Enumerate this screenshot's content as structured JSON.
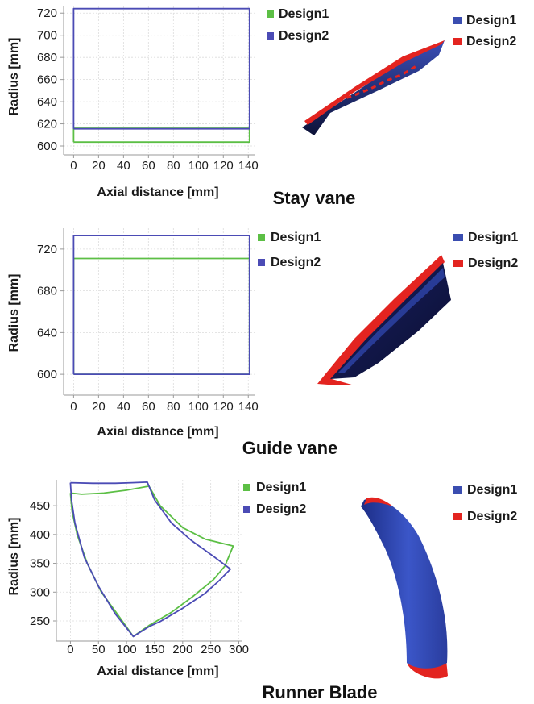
{
  "colors": {
    "design1": "#5cbf45",
    "design2": "#4b4bb5",
    "render_blue": "#2a3f9e",
    "render_navy": "#0f1440",
    "render_red": "#e32420",
    "legend_blue": "#3a4db0",
    "legend_red": "#e32420"
  },
  "chart_data": [
    {
      "id": "stay-vane",
      "type": "line",
      "title": "Stay vane",
      "xlabel": "Axial distance [mm]",
      "ylabel": "Radius [mm]",
      "xlim": [
        -8,
        145
      ],
      "ylim": [
        592,
        726
      ],
      "xticks": [
        0,
        20,
        40,
        60,
        80,
        100,
        120,
        140
      ],
      "yticks": [
        600,
        620,
        640,
        660,
        680,
        700,
        720
      ],
      "grid": true,
      "legend": [
        "Design1",
        "Design2"
      ],
      "render_legend": [
        "Design1",
        "Design2"
      ],
      "series": [
        {
          "name": "Design1",
          "points": [
            [
              0,
              603.5
            ],
            [
              141,
              603.5
            ],
            [
              141,
              616
            ],
            [
              0,
              616
            ],
            [
              0,
              603.5
            ]
          ]
        },
        {
          "name": "Design2",
          "points": [
            [
              0,
              615.5
            ],
            [
              141,
              615.5
            ],
            [
              141,
              724
            ],
            [
              0,
              724
            ],
            [
              0,
              615.5
            ]
          ]
        }
      ]
    },
    {
      "id": "guide-vane",
      "type": "line",
      "title": "Guide vane",
      "xlabel": "Axial distance [mm]",
      "ylabel": "Radius [mm]",
      "xlim": [
        -8,
        145
      ],
      "ylim": [
        580,
        740
      ],
      "xticks": [
        0,
        20,
        40,
        60,
        80,
        100,
        120,
        140
      ],
      "yticks": [
        600,
        640,
        680,
        720
      ],
      "grid": true,
      "legend": [
        "Design1",
        "Design2"
      ],
      "render_legend": [
        "Design1",
        "Design2"
      ],
      "series": [
        {
          "name": "Design1",
          "points": [
            [
              0,
              600
            ],
            [
              141,
              600
            ],
            [
              141,
              711
            ],
            [
              0,
              711
            ],
            [
              0,
              600
            ]
          ]
        },
        {
          "name": "Design2",
          "points": [
            [
              0,
              600
            ],
            [
              141,
              600
            ],
            [
              141,
              733
            ],
            [
              0,
              733
            ],
            [
              0,
              600
            ]
          ]
        }
      ]
    },
    {
      "id": "runner-blade",
      "type": "line",
      "title": "Runner Blade",
      "xlabel": "Axial distance [mm]",
      "ylabel": "Radius [mm]",
      "xlim": [
        -25,
        305
      ],
      "ylim": [
        215,
        495
      ],
      "xticks": [
        0,
        50,
        100,
        150,
        200,
        250,
        300
      ],
      "yticks": [
        250,
        300,
        350,
        400,
        450
      ],
      "grid": true,
      "legend": [
        "Design1",
        "Design2"
      ],
      "render_legend": [
        "Design1",
        "Design2"
      ],
      "series": [
        {
          "name": "Design1",
          "points": [
            [
              0,
              472
            ],
            [
              20,
              470
            ],
            [
              60,
              472
            ],
            [
              100,
              477
            ],
            [
              140,
              484
            ],
            [
              160,
              450
            ],
            [
              200,
              412
            ],
            [
              240,
              392
            ],
            [
              290,
              380
            ],
            [
              275,
              345
            ],
            [
              255,
              322
            ],
            [
              220,
              294
            ],
            [
              180,
              265
            ],
            [
              140,
              242
            ],
            [
              112,
              223
            ],
            [
              85,
              260
            ],
            [
              55,
              300
            ],
            [
              30,
              350
            ],
            [
              12,
              400
            ],
            [
              3,
              440
            ],
            [
              0,
              472
            ]
          ]
        },
        {
          "name": "Design2",
          "points": [
            [
              0,
              490
            ],
            [
              40,
              489
            ],
            [
              80,
              489
            ],
            [
              110,
              490
            ],
            [
              137,
              491
            ],
            [
              150,
              460
            ],
            [
              180,
              420
            ],
            [
              215,
              390
            ],
            [
              255,
              362
            ],
            [
              285,
              340
            ],
            [
              265,
              320
            ],
            [
              240,
              298
            ],
            [
              200,
              272
            ],
            [
              160,
              249
            ],
            [
              140,
              240
            ],
            [
              112,
              223
            ],
            [
              80,
              262
            ],
            [
              50,
              310
            ],
            [
              25,
              360
            ],
            [
              8,
              420
            ],
            [
              2,
              460
            ],
            [
              0,
              490
            ]
          ]
        }
      ]
    }
  ]
}
